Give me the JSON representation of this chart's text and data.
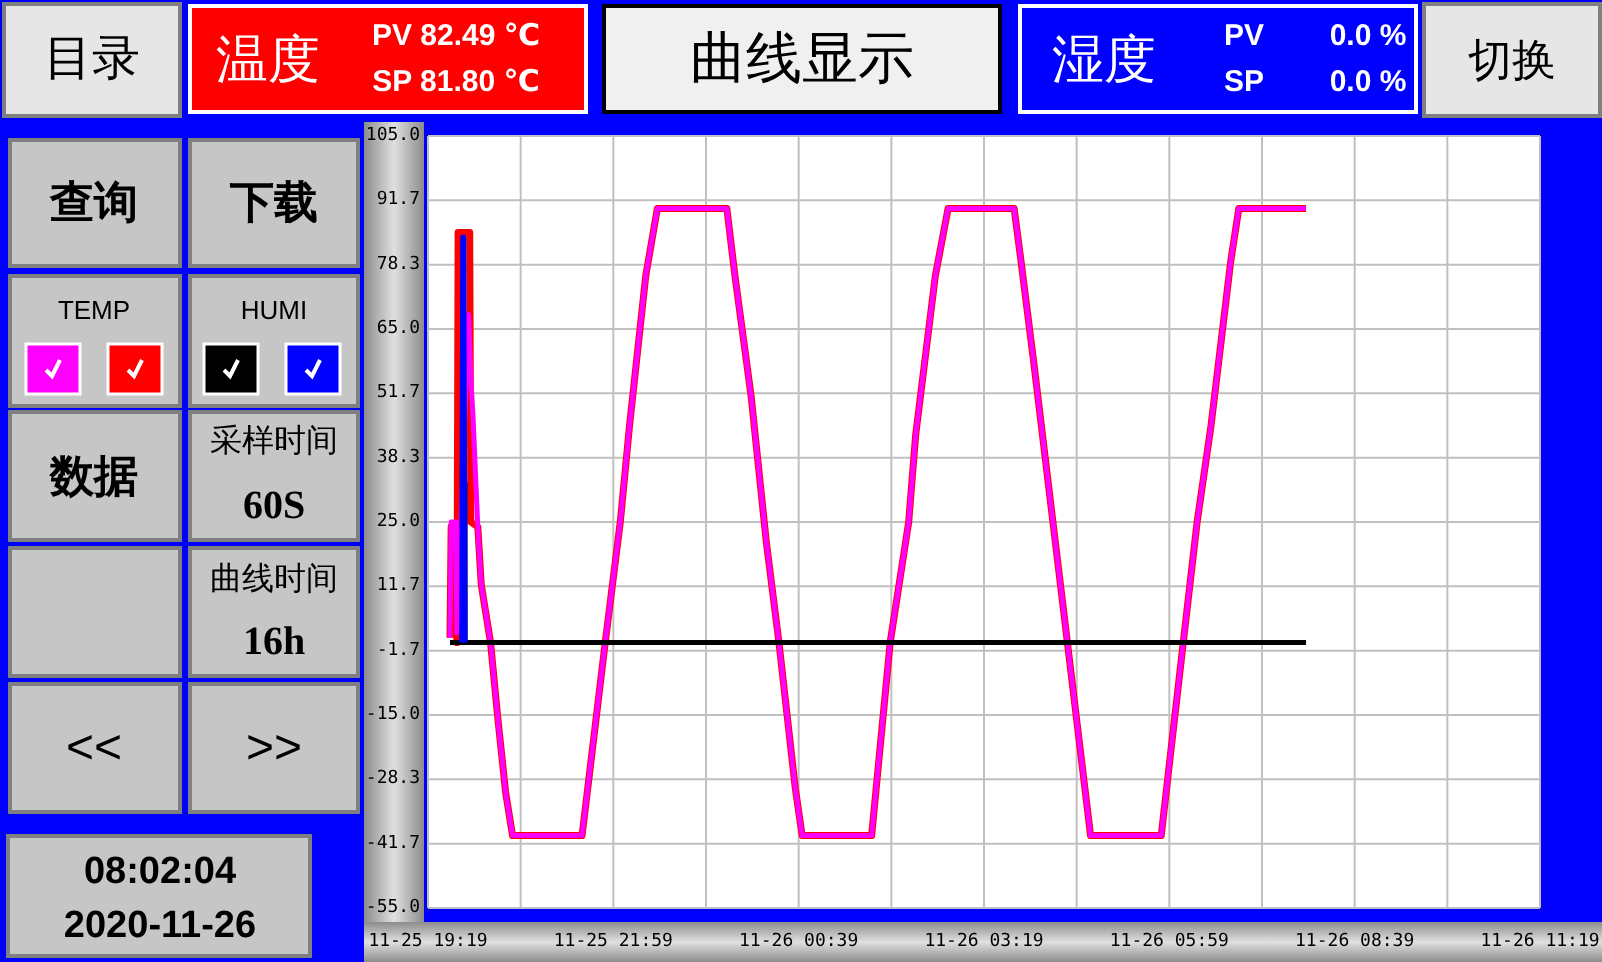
{
  "chart_data": {
    "type": "line",
    "title": "曲线显示",
    "annotations": [
      "目录",
      "温度",
      "PV 82.49 ℃",
      "SP 81.80 ℃",
      "湿度",
      "PV",
      "0.0 %",
      "SP",
      "0.0 %",
      "切换",
      "查询",
      "下载",
      "TEMP",
      "HUMI",
      "数据",
      "采样时间",
      "60S",
      "曲线时间",
      "16h",
      "<<",
      ">>",
      "08:02:04",
      "2020-11-26"
    ],
    "xlim": [
      "2020-11-25T19:19",
      "2020-11-26T11:19"
    ],
    "xticks": [
      {
        "value": "2020-11-25T19:19",
        "label": "11-25 19:19"
      },
      {
        "value": "2020-11-25T20:39",
        "label": null
      },
      {
        "value": "2020-11-25T21:59",
        "label": "11-25 21:59"
      },
      {
        "value": "2020-11-25T23:19",
        "label": null
      },
      {
        "value": "2020-11-26T00:39",
        "label": "11-26 00:39"
      },
      {
        "value": "2020-11-26T01:59",
        "label": null
      },
      {
        "value": "2020-11-26T03:19",
        "label": "11-26 03:19"
      },
      {
        "value": "2020-11-26T04:39",
        "label": null
      },
      {
        "value": "2020-11-26T05:59",
        "label": "11-26 05:59"
      },
      {
        "value": "2020-11-26T07:19",
        "label": null
      },
      {
        "value": "2020-11-26T08:39",
        "label": "11-26 08:39"
      },
      {
        "value": "2020-11-26T09:59",
        "label": null
      },
      {
        "value": "2020-11-26T11:19",
        "label": "11-26 11:19"
      }
    ],
    "ylim": [
      -55,
      105
    ],
    "yticks": [
      {
        "value": -55,
        "label": "-55.0"
      },
      {
        "value": -41.7,
        "label": "-41.7"
      },
      {
        "value": -28.3,
        "label": "-28.3"
      },
      {
        "value": -15,
        "label": "-15.0"
      },
      {
        "value": -1.7,
        "label": "-1.7"
      },
      {
        "value": 11.7,
        "label": "11.7"
      },
      {
        "value": 25,
        "label": "25.0"
      },
      {
        "value": 38.3,
        "label": "38.3"
      },
      {
        "value": 51.7,
        "label": "51.7"
      },
      {
        "value": 65,
        "label": "65.0"
      },
      {
        "value": 78.3,
        "label": "78.3"
      },
      {
        "value": 91.7,
        "label": "91.7"
      },
      {
        "value": 105,
        "label": "105.0"
      }
    ],
    "grid": true,
    "series": [
      {
        "color": "#ff0000",
        "x": [
          "2020-11-25T19:38",
          "2020-11-25T19:39",
          "2020-11-25T19:42",
          "2020-11-25T19:44",
          "2020-11-25T19:45",
          "2020-11-25T19:55",
          "2020-11-25T19:56",
          "2020-11-25T20:02",
          "2020-11-25T20:05",
          "2020-11-25T20:13",
          "2020-11-25T20:19",
          "2020-11-25T20:26",
          "2020-11-25T20:32",
          "2020-11-25T21:32",
          "2020-11-25T21:52",
          "2020-11-25T22:05",
          "2020-11-25T22:13",
          "2020-11-25T22:27",
          "2020-11-25T22:37",
          "2020-11-25T23:37",
          "2020-11-25T23:44",
          "2020-11-25T23:58",
          "2020-11-26T00:11",
          "2020-11-26T00:22",
          "2020-11-26T00:36",
          "2020-11-26T00:42",
          "2020-11-26T01:42",
          "2020-11-26T01:58",
          "2020-11-26T02:14",
          "2020-11-26T02:20",
          "2020-11-26T02:37",
          "2020-11-26T02:48",
          "2020-11-26T03:45",
          "2020-11-26T03:51",
          "2020-11-26T04:02",
          "2020-11-26T04:21",
          "2020-11-26T04:31",
          "2020-11-26T04:46",
          "2020-11-26T04:51",
          "2020-11-26T05:52",
          "2020-11-26T06:11",
          "2020-11-26T06:23",
          "2020-11-26T06:35",
          "2020-11-26T06:52",
          "2020-11-26T06:59",
          "2020-11-26T07:57"
        ],
        "values": [
          1,
          24,
          24,
          0,
          85,
          85,
          25,
          24,
          12,
          0,
          -15,
          -31,
          -40,
          -40,
          0,
          25,
          45,
          76,
          90,
          90,
          76,
          51,
          21,
          0,
          -30,
          -40,
          -40,
          0,
          25,
          43,
          76,
          90,
          90,
          79,
          58,
          20,
          0,
          -30,
          -40,
          -40,
          0,
          25,
          45,
          79,
          90,
          90
        ]
      },
      {
        "color": "#ff00ff",
        "x": [
          "2020-11-25T19:38",
          "2020-11-25T19:39",
          "2020-11-25T19:43",
          "2020-11-25T19:44",
          "2020-11-25T19:54",
          "2020-11-25T19:56",
          "2020-11-25T19:58",
          "2020-11-25T20:02",
          "2020-11-25T20:05",
          "2020-11-25T20:13",
          "2020-11-25T20:19",
          "2020-11-25T20:26",
          "2020-11-25T20:32",
          "2020-11-25T21:32",
          "2020-11-25T21:52",
          "2020-11-25T22:05",
          "2020-11-25T22:13",
          "2020-11-25T22:27",
          "2020-11-25T22:37",
          "2020-11-25T23:37",
          "2020-11-25T23:44",
          "2020-11-25T23:58",
          "2020-11-26T00:11",
          "2020-11-26T00:22",
          "2020-11-26T00:36",
          "2020-11-26T00:42",
          "2020-11-26T01:42",
          "2020-11-26T01:58",
          "2020-11-26T02:14",
          "2020-11-26T02:20",
          "2020-11-26T02:37",
          "2020-11-26T02:48",
          "2020-11-26T03:45",
          "2020-11-26T03:51",
          "2020-11-26T04:02",
          "2020-11-26T04:21",
          "2020-11-26T04:31",
          "2020-11-26T04:46",
          "2020-11-26T04:51",
          "2020-11-26T05:52",
          "2020-11-26T06:11",
          "2020-11-26T06:23",
          "2020-11-26T06:35",
          "2020-11-26T06:52",
          "2020-11-26T06:59",
          "2020-11-26T07:57"
        ],
        "values": [
          1,
          25,
          25,
          2,
          68,
          55,
          46,
          24,
          12,
          0,
          -15,
          -31,
          -40,
          -40,
          0,
          25,
          45,
          76,
          90,
          90,
          76,
          51,
          21,
          0,
          -30,
          -40,
          -40,
          0,
          25,
          43,
          76,
          90,
          90,
          79,
          58,
          20,
          0,
          -30,
          -40,
          -40,
          0,
          25,
          45,
          79,
          90,
          90
        ]
      },
      {
        "color": "#000000",
        "x": [
          "2020-11-25T19:38",
          "2020-11-25T19:50",
          "2020-11-25T19:50",
          "2020-11-25T19:51",
          "2020-11-25T19:51",
          "2020-11-26T07:57"
        ],
        "values": [
          0,
          0,
          33,
          33,
          0,
          0
        ]
      },
      {
        "color": "#0000ff",
        "x": [
          "2020-11-25T19:48",
          "2020-11-25T19:49",
          "2020-11-25T19:50",
          "2020-11-25T19:51"
        ],
        "values": [
          0,
          84,
          84,
          0
        ]
      }
    ]
  }
}
